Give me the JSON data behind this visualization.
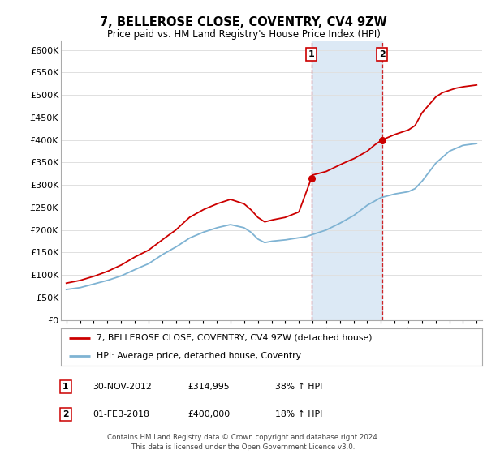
{
  "title": "7, BELLEROSE CLOSE, COVENTRY, CV4 9ZW",
  "subtitle": "Price paid vs. HM Land Registry's House Price Index (HPI)",
  "ylim": [
    0,
    620000
  ],
  "yticks": [
    0,
    50000,
    100000,
    150000,
    200000,
    250000,
    300000,
    350000,
    400000,
    450000,
    500000,
    550000,
    600000
  ],
  "ytick_labels": [
    "£0",
    "£50K",
    "£100K",
    "£150K",
    "£200K",
    "£250K",
    "£300K",
    "£350K",
    "£400K",
    "£450K",
    "£500K",
    "£550K",
    "£600K"
  ],
  "red_line_color": "#cc0000",
  "blue_line_color": "#7fb3d3",
  "marker1_date": 2012.917,
  "marker1_value": 314995,
  "marker2_date": 2018.083,
  "marker2_value": 400000,
  "vspan_color": "#dce9f5",
  "legend_label_red": "7, BELLEROSE CLOSE, COVENTRY, CV4 9ZW (detached house)",
  "legend_label_blue": "HPI: Average price, detached house, Coventry",
  "footer": "Contains HM Land Registry data © Crown copyright and database right 2024.\nThis data is licensed under the Open Government Licence v3.0.",
  "background_color": "#ffffff",
  "grid_color": "#e0e0e0",
  "hpi_ctrl_x": [
    1995,
    1996,
    1997,
    1998,
    1999,
    2000,
    2001,
    2002,
    2003,
    2004,
    2005,
    2006,
    2007,
    2008,
    2008.5,
    2009,
    2009.5,
    2010,
    2011,
    2012,
    2012.5,
    2013,
    2014,
    2015,
    2016,
    2017,
    2018,
    2019,
    2020,
    2020.5,
    2021,
    2022,
    2023,
    2024,
    2025
  ],
  "hpi_ctrl_y": [
    68000,
    72000,
    80000,
    88000,
    98000,
    112000,
    125000,
    145000,
    162000,
    182000,
    195000,
    205000,
    212000,
    205000,
    195000,
    180000,
    172000,
    175000,
    178000,
    183000,
    185000,
    190000,
    200000,
    215000,
    232000,
    255000,
    272000,
    280000,
    285000,
    292000,
    308000,
    348000,
    375000,
    388000,
    392000
  ],
  "price_ctrl_x": [
    1995,
    1996,
    1997,
    1998,
    1999,
    2000,
    2001,
    2002,
    2003,
    2004,
    2005,
    2006,
    2007,
    2008,
    2008.5,
    2009,
    2009.5,
    2010,
    2011,
    2012,
    2012.917,
    2013,
    2014,
    2015,
    2016,
    2017,
    2017.5,
    2018.083,
    2019,
    2020,
    2020.5,
    2021,
    2022,
    2022.5,
    2023,
    2023.5,
    2024,
    2024.5,
    2025
  ],
  "price_ctrl_y": [
    82000,
    88000,
    97000,
    108000,
    122000,
    140000,
    155000,
    178000,
    200000,
    228000,
    245000,
    258000,
    268000,
    258000,
    245000,
    228000,
    218000,
    222000,
    228000,
    240000,
    314995,
    322000,
    330000,
    345000,
    358000,
    375000,
    388000,
    400000,
    412000,
    422000,
    432000,
    460000,
    495000,
    505000,
    510000,
    515000,
    518000,
    520000,
    522000
  ]
}
